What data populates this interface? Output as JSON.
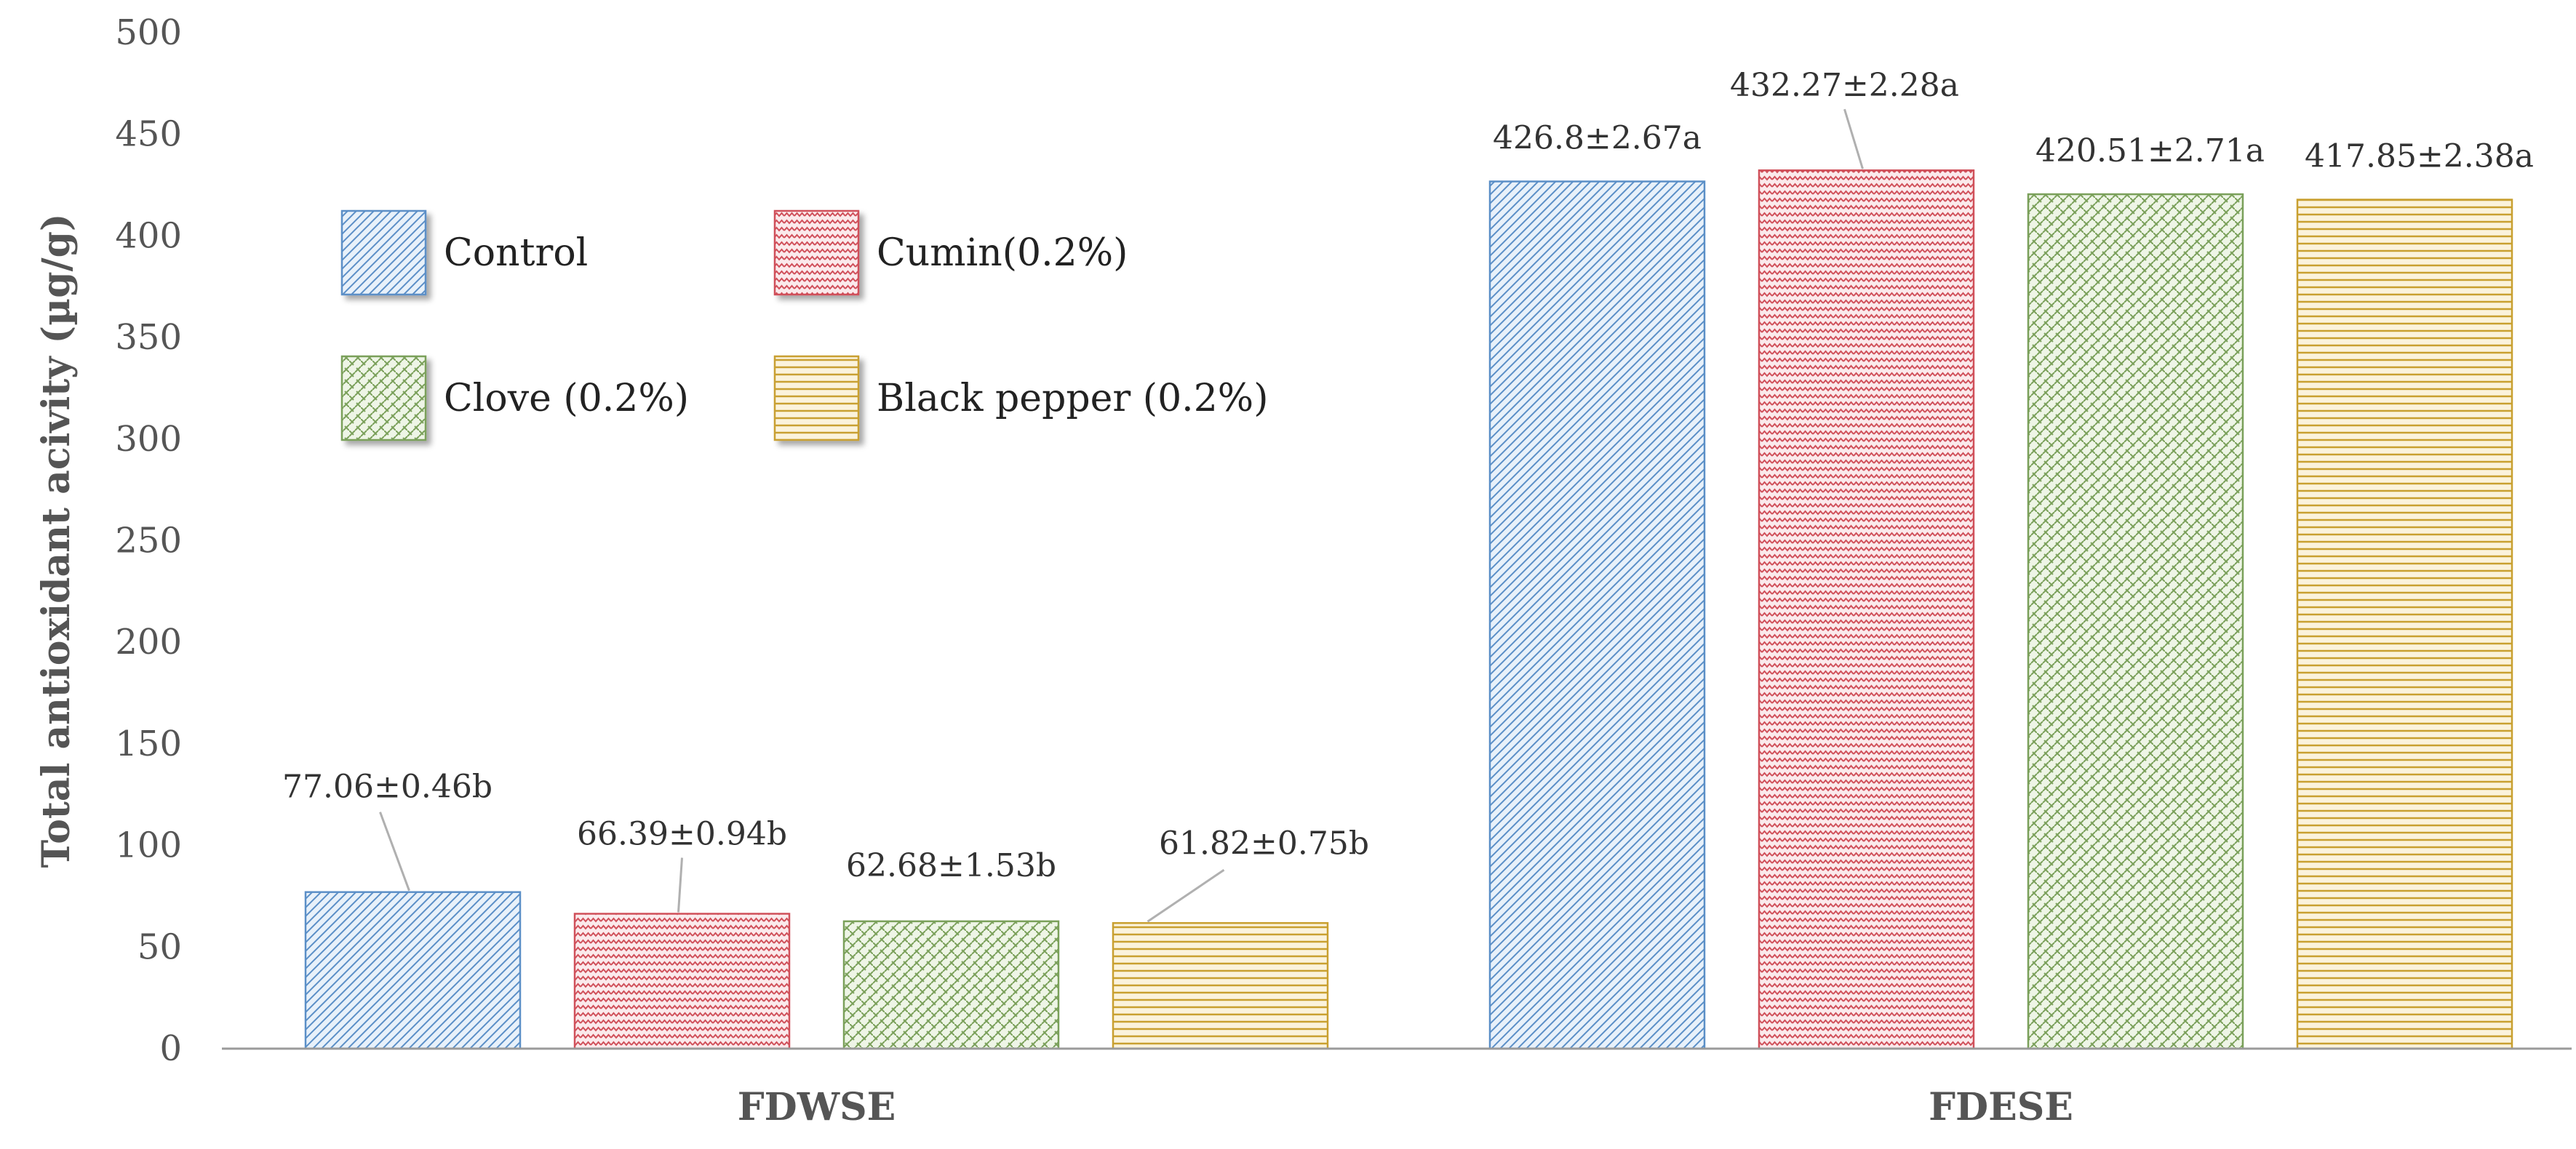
{
  "chart_data": {
    "type": "bar",
    "ylabel": "Total antioxidant acivity (µg/g)",
    "xlabel": "",
    "ylim": [
      0,
      500
    ],
    "yticks": [
      0,
      50,
      100,
      150,
      200,
      250,
      300,
      350,
      400,
      450,
      500
    ],
    "grid": false,
    "legend_placement": "top-left",
    "categories": [
      "FDWSE",
      "FDESE"
    ],
    "series": [
      {
        "name": "Control",
        "values": [
          77.06,
          426.8
        ],
        "labels": [
          "77.06±0.46b",
          "426.8±2.67a"
        ],
        "pattern": "diagonal",
        "color": "#5b8fc7",
        "fill": "#e8f1fa"
      },
      {
        "name": "Cumin(0.2%)",
        "values": [
          66.39,
          432.27
        ],
        "labels": [
          "66.39±0.94b",
          "432.27±2.28a"
        ],
        "pattern": "zigzag",
        "color": "#d0505a",
        "fill": "#fbeaec"
      },
      {
        "name": "Clove (0.2%)",
        "values": [
          62.68,
          420.51
        ],
        "labels": [
          "62.68±1.53b",
          "420.51±2.71a"
        ],
        "pattern": "weave",
        "color": "#7aa05a",
        "fill": "#eef5e6"
      },
      {
        "name": "Black pepper (0.2%)",
        "values": [
          61.82,
          417.85
        ],
        "labels": [
          "61.82±0.75b",
          "417.85±2.38a"
        ],
        "pattern": "horizontal",
        "color": "#c9a030",
        "fill": "#fbf3dc"
      }
    ]
  }
}
